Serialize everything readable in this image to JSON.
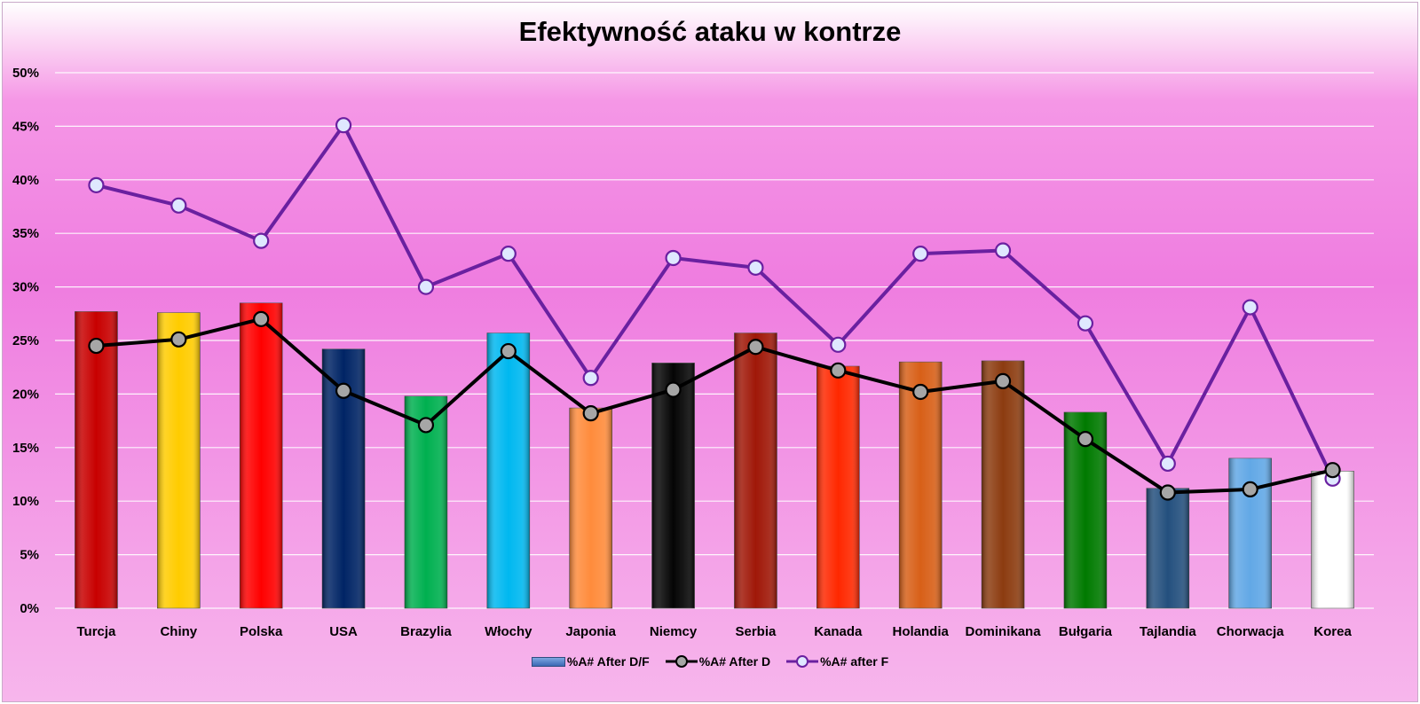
{
  "chart_data": {
    "type": "bar",
    "title": "Efektywność ataku w kontrze",
    "categories": [
      "Turcja",
      "Chiny",
      "Polska",
      "USA",
      "Brazylia",
      "Włochy",
      "Japonia",
      "Niemcy",
      "Serbia",
      "Kanada",
      "Holandia",
      "Dominikana",
      "Bułgaria",
      "Tajlandia",
      "Chorwacja",
      "Korea"
    ],
    "ylim": [
      0,
      50
    ],
    "yticks": [
      "0%",
      "5%",
      "10%",
      "15%",
      "20%",
      "25%",
      "30%",
      "35%",
      "40%",
      "45%",
      "50%"
    ],
    "grid": true,
    "legend_position": "bottom",
    "series": [
      {
        "name": "%A# After D/F",
        "type": "bar",
        "values": [
          27.7,
          27.6,
          28.5,
          24.2,
          19.8,
          25.7,
          18.7,
          22.9,
          25.7,
          22.6,
          23.0,
          23.1,
          18.3,
          11.2,
          14.0,
          12.8
        ],
        "colors": [
          "#c80000",
          "#ffcc00",
          "#ff0000",
          "#002465",
          "#00b050",
          "#00b8f0",
          "#ff8c3c",
          "#050505",
          "#a01808",
          "#ff2800",
          "#d86018",
          "#8c3c10",
          "#007a00",
          "#24507e",
          "#62a8e6",
          "#ffffff"
        ]
      },
      {
        "name": "%A# After D",
        "type": "line",
        "color": "#000000",
        "marker_fill": "#a6a6a6",
        "values": [
          24.5,
          25.1,
          27.0,
          20.3,
          17.1,
          24.0,
          18.2,
          20.4,
          24.4,
          22.2,
          20.2,
          21.2,
          15.8,
          10.8,
          11.1,
          12.9
        ]
      },
      {
        "name": "%A# after F",
        "type": "line",
        "color": "#6a20a0",
        "marker_fill": "#dfe8ff",
        "values": [
          39.5,
          37.6,
          34.3,
          45.1,
          30.0,
          33.1,
          21.5,
          32.7,
          31.8,
          24.6,
          33.1,
          33.4,
          26.6,
          13.5,
          28.1,
          12.1
        ]
      }
    ]
  }
}
